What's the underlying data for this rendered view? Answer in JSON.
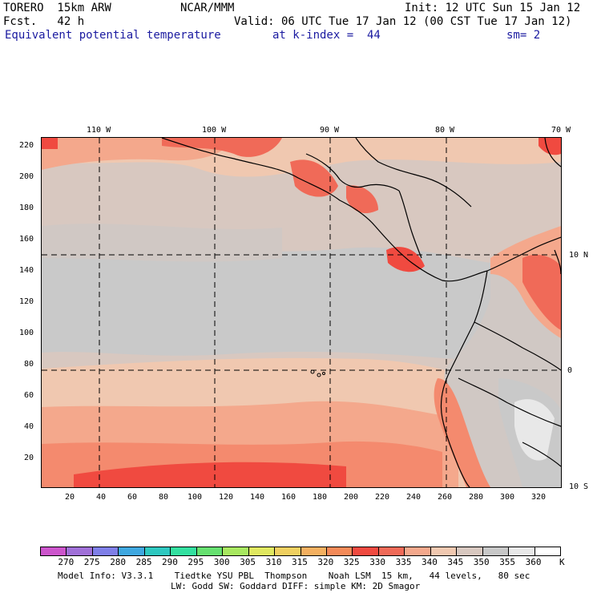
{
  "header": {
    "model": "TORERO  15km ARW",
    "center": "NCAR/MMM",
    "init": "Init: 12 UTC Sun 15 Jan 12",
    "fcst": "Fcst.   42 h",
    "valid": "Valid: 06 UTC Tue 17 Jan 12 (00 CST Tue 17 Jan 12)",
    "field": "Equivalent potential temperature",
    "level": "at k-index =  44",
    "smooth": "sm= 2"
  },
  "map": {
    "longitude_labels": [
      "110 W",
      "100 W",
      "90 W",
      "80 W",
      "70 W"
    ],
    "latitude_labels": [
      "10 N",
      "0",
      "10 S"
    ],
    "y_grid_labels": [
      "220",
      "200",
      "180",
      "160",
      "140",
      "120",
      "100",
      "80",
      "60",
      "40",
      "20"
    ],
    "x_grid_labels": [
      "20",
      "40",
      "60",
      "80",
      "100",
      "120",
      "140",
      "160",
      "180",
      "200",
      "220",
      "240",
      "260",
      "280",
      "300",
      "320"
    ]
  },
  "colorbar": {
    "unit": "K",
    "labels": [
      "270",
      "275",
      "280",
      "285",
      "290",
      "295",
      "300",
      "305",
      "310",
      "315",
      "320",
      "325",
      "330",
      "335",
      "340",
      "345",
      "350",
      "355",
      "360"
    ],
    "colors": [
      "#cc55cc",
      "#a070d8",
      "#7f7fe8",
      "#3fa8e0",
      "#2ec8c0",
      "#33e0a0",
      "#66e070",
      "#a8e860",
      "#e0e860",
      "#f0d060",
      "#f4b060",
      "#f48a58",
      "#f04a40",
      "#f06a58",
      "#f4a88c",
      "#f0c8b0",
      "#d8c8c0",
      "#c8c8c8",
      "#e8e8e8",
      "#ffffff"
    ]
  },
  "footer": {
    "line1": "Model Info: V3.3.1    Tiedtke YSU PBL  Thompson    Noah LSM  15 km,   44 levels,   80 sec",
    "line2": "LW: Godd SW: Goddard DIFF: simple KM: 2D Smagor"
  }
}
